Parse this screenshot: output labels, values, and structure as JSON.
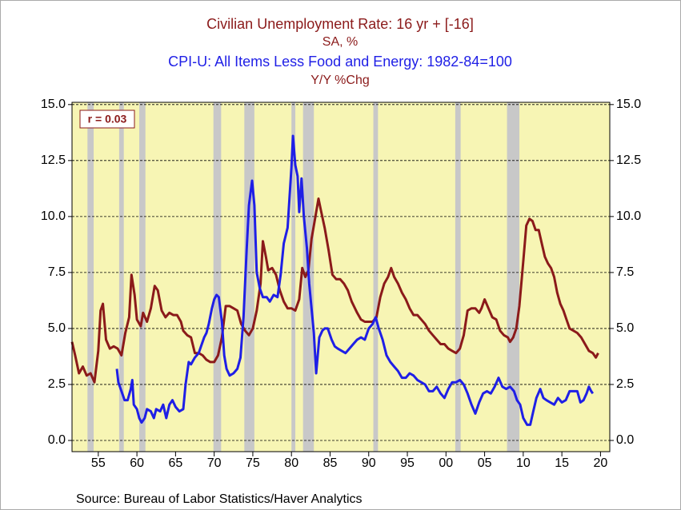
{
  "chart_data": {
    "type": "line",
    "titles": [
      {
        "text": "Civilian Unemployment Rate: 16 yr + [-16]",
        "color": "#8b1a1a"
      },
      {
        "text": "SA, %",
        "color": "#8b1a1a"
      },
      {
        "text": "CPI-U: All Items Less Food and Energy: 1982-84=100",
        "color": "#1f1fe6"
      },
      {
        "text": "Y/Y %Chg",
        "color": "#8b1a1a"
      }
    ],
    "annotation": "r = 0.03",
    "source": "Source:  Bureau of Labor Statistics/Haver Analytics",
    "xlim": [
      1951.6,
      2021.2
    ],
    "ylim": [
      -0.5,
      15.1
    ],
    "xticks": [
      {
        "value": 1955,
        "label": "55"
      },
      {
        "value": 1960,
        "label": "60"
      },
      {
        "value": 1965,
        "label": "65"
      },
      {
        "value": 1970,
        "label": "70"
      },
      {
        "value": 1975,
        "label": "75"
      },
      {
        "value": 1980,
        "label": "80"
      },
      {
        "value": 1985,
        "label": "85"
      },
      {
        "value": 1990,
        "label": "90"
      },
      {
        "value": 1995,
        "label": "95"
      },
      {
        "value": 2000,
        "label": "00"
      },
      {
        "value": 2005,
        "label": "05"
      },
      {
        "value": 2010,
        "label": "10"
      },
      {
        "value": 2015,
        "label": "15"
      },
      {
        "value": 2020,
        "label": "20"
      }
    ],
    "yticks": [
      {
        "value": 0,
        "label": "0.0"
      },
      {
        "value": 2.5,
        "label": "2.5"
      },
      {
        "value": 5,
        "label": "5.0"
      },
      {
        "value": 7.5,
        "label": "7.5"
      },
      {
        "value": 10,
        "label": "10.0"
      },
      {
        "value": 12.5,
        "label": "12.5"
      },
      {
        "value": 15,
        "label": "15.0"
      }
    ],
    "grid": true,
    "background": "#f7f5b4",
    "recession_color": "#c8c8c8",
    "recessions": [
      [
        1953.6,
        1954.4
      ],
      [
        1957.7,
        1958.3
      ],
      [
        1960.3,
        1961.1
      ],
      [
        1969.9,
        1970.9
      ],
      [
        1973.9,
        1975.2
      ],
      [
        1980.0,
        1980.5
      ],
      [
        1981.5,
        1982.9
      ],
      [
        1990.6,
        1991.2
      ],
      [
        2001.2,
        2001.9
      ],
      [
        2007.9,
        2009.5
      ]
    ],
    "series": [
      {
        "name": "Civilian Unemployment Rate: 16 yr + [-16]",
        "color": "#8b1a1a",
        "x": [
          1951.6,
          1952,
          1952.5,
          1953,
          1953.5,
          1954,
          1954.5,
          1955,
          1955.3,
          1955.6,
          1956,
          1956.5,
          1957,
          1957.5,
          1958,
          1958.5,
          1959,
          1959.3,
          1959.7,
          1960,
          1960.5,
          1960.8,
          1961.3,
          1961.8,
          1962.3,
          1962.7,
          1963.2,
          1963.7,
          1964.2,
          1964.7,
          1965.2,
          1965.7,
          1966,
          1966.5,
          1967,
          1967.5,
          1968,
          1968.5,
          1969,
          1969.5,
          1970,
          1970.5,
          1971,
          1971.5,
          1972,
          1972.5,
          1973,
          1973.5,
          1974,
          1974.5,
          1975,
          1975.5,
          1976,
          1976.3,
          1976.7,
          1977,
          1977.5,
          1978,
          1978.5,
          1979,
          1979.5,
          1980,
          1980.5,
          1981,
          1981.4,
          1981.8,
          1982.2,
          1982.6,
          1983,
          1983.5,
          1983.8,
          1984.3,
          1984.8,
          1985.3,
          1985.8,
          1986.3,
          1986.8,
          1987.3,
          1987.8,
          1988.5,
          1989,
          1989.5,
          1990,
          1990.5,
          1991,
          1991.5,
          1992,
          1992.5,
          1992.9,
          1993.3,
          1993.8,
          1994.3,
          1994.8,
          1995.3,
          1995.8,
          1996.3,
          1996.8,
          1997.3,
          1997.8,
          1998.3,
          1998.8,
          1999.3,
          1999.8,
          2000.3,
          2000.8,
          2001.3,
          2001.8,
          2002.3,
          2002.8,
          2003.3,
          2003.8,
          2004.3,
          2004.6,
          2005,
          2005.5,
          2006,
          2006.5,
          2007,
          2007.5,
          2008,
          2008.3,
          2008.7,
          2009.1,
          2009.5,
          2010,
          2010.4,
          2010.8,
          2011.2,
          2011.6,
          2012,
          2012.4,
          2012.8,
          2013.2,
          2013.6,
          2014,
          2014.4,
          2014.8,
          2015.2,
          2015.6,
          2016,
          2016.5,
          2017,
          2017.5,
          2018,
          2018.5,
          2019,
          2019.4,
          2019.7
        ],
        "values": [
          4.4,
          3.8,
          3.0,
          3.3,
          2.9,
          3.0,
          2.6,
          4.0,
          5.8,
          6.1,
          4.5,
          4.1,
          4.2,
          4.1,
          3.8,
          4.8,
          5.5,
          7.4,
          6.5,
          5.4,
          5.1,
          5.7,
          5.3,
          5.9,
          6.9,
          6.7,
          5.8,
          5.5,
          5.7,
          5.6,
          5.6,
          5.3,
          4.9,
          4.7,
          4.6,
          3.9,
          3.9,
          3.8,
          3.6,
          3.5,
          3.5,
          3.8,
          4.6,
          6.0,
          6.0,
          5.9,
          5.8,
          5.2,
          4.9,
          4.7,
          5.0,
          5.8,
          7.0,
          8.9,
          8.2,
          7.6,
          7.7,
          7.4,
          6.7,
          6.2,
          5.9,
          5.9,
          5.8,
          6.3,
          7.7,
          7.3,
          7.6,
          9.0,
          9.8,
          10.8,
          10.3,
          9.5,
          8.5,
          7.4,
          7.2,
          7.2,
          7.0,
          6.7,
          6.2,
          5.7,
          5.4,
          5.3,
          5.3,
          5.3,
          5.5,
          6.4,
          7.0,
          7.3,
          7.7,
          7.3,
          7.0,
          6.6,
          6.3,
          5.9,
          5.6,
          5.6,
          5.4,
          5.2,
          4.9,
          4.7,
          4.5,
          4.3,
          4.3,
          4.1,
          4.0,
          3.9,
          4.1,
          4.7,
          5.8,
          5.9,
          5.9,
          5.7,
          5.9,
          6.3,
          5.9,
          5.5,
          5.4,
          4.9,
          4.7,
          4.6,
          4.4,
          4.6,
          5.0,
          6.0,
          8.0,
          9.6,
          9.9,
          9.8,
          9.4,
          9.4,
          8.8,
          8.2,
          7.9,
          7.7,
          7.3,
          6.6,
          6.1,
          5.8,
          5.4,
          5.0,
          4.9,
          4.8,
          4.6,
          4.3,
          4.0,
          3.9,
          3.7,
          3.9
        ]
      },
      {
        "name": "CPI-U: All Items Less Food and Energy: 1982-84=100",
        "color": "#1f1fe6",
        "x": [
          1957.4,
          1957.6,
          1958,
          1958.4,
          1958.8,
          1959.2,
          1959.4,
          1959.6,
          1960,
          1960.3,
          1960.6,
          1961,
          1961.3,
          1961.8,
          1962.2,
          1962.5,
          1963,
          1963.4,
          1963.8,
          1964.2,
          1964.6,
          1965,
          1965.5,
          1966,
          1966.3,
          1966.7,
          1967,
          1967.5,
          1968,
          1968.3,
          1968.7,
          1969,
          1969.3,
          1969.7,
          1970,
          1970.3,
          1970.6,
          1971,
          1971.3,
          1971.6,
          1972,
          1972.5,
          1973,
          1973.4,
          1973.8,
          1974.2,
          1974.5,
          1974.9,
          1975.2,
          1975.5,
          1975.9,
          1976.3,
          1976.8,
          1977.2,
          1977.7,
          1978.2,
          1978.6,
          1979,
          1979.5,
          1980,
          1980.2,
          1980.5,
          1980.8,
          1981,
          1981.3,
          1981.6,
          1982,
          1982.3,
          1982.6,
          1982.9,
          1983.2,
          1983.6,
          1984,
          1984.3,
          1984.7,
          1985.2,
          1985.6,
          1986,
          1986.5,
          1987,
          1987.5,
          1988,
          1988.5,
          1989,
          1989.5,
          1990,
          1990.5,
          1990.9,
          1991.3,
          1991.8,
          1992.3,
          1992.8,
          1993.3,
          1993.8,
          1994.3,
          1994.8,
          1995.3,
          1995.8,
          1996.3,
          1996.8,
          1997.3,
          1997.8,
          1998.3,
          1998.8,
          1999.3,
          1999.8,
          2000.3,
          2000.8,
          2001.3,
          2001.8,
          2002.3,
          2002.8,
          2003.3,
          2003.8,
          2004.3,
          2004.8,
          2005.3,
          2005.8,
          2006.3,
          2006.8,
          2007.3,
          2007.8,
          2008.3,
          2008.8,
          2009.2,
          2009.6,
          2010,
          2010.5,
          2010.9,
          2011.3,
          2011.7,
          2012.2,
          2012.6,
          2013,
          2013.5,
          2014,
          2014.5,
          2015,
          2015.5,
          2016,
          2016.5,
          2017,
          2017.4,
          2017.8,
          2018.2,
          2018.5,
          2018.8,
          2019
        ],
        "values": [
          3.2,
          2.6,
          2.2,
          1.8,
          1.8,
          2.3,
          2.7,
          1.6,
          1.4,
          1.0,
          0.8,
          1.0,
          1.4,
          1.3,
          1.0,
          1.4,
          1.3,
          1.6,
          1.0,
          1.6,
          1.8,
          1.5,
          1.3,
          1.4,
          2.5,
          3.5,
          3.4,
          3.7,
          3.9,
          4.2,
          4.6,
          4.8,
          5.2,
          5.9,
          6.3,
          6.5,
          6.4,
          5.3,
          3.8,
          3.2,
          2.9,
          3.0,
          3.2,
          3.7,
          5.5,
          8.5,
          10.5,
          11.6,
          10.5,
          7.5,
          6.8,
          6.4,
          6.4,
          6.2,
          6.5,
          6.4,
          7.4,
          8.8,
          9.5,
          12.2,
          13.6,
          12.3,
          11.8,
          10.2,
          11.7,
          10.0,
          8.6,
          7.0,
          5.9,
          4.8,
          3.0,
          4.6,
          4.9,
          5.0,
          5.0,
          4.5,
          4.2,
          4.1,
          4.0,
          3.9,
          4.1,
          4.3,
          4.5,
          4.6,
          4.5,
          5.0,
          5.2,
          5.5,
          5.0,
          4.5,
          3.8,
          3.5,
          3.3,
          3.1,
          2.8,
          2.8,
          3.0,
          2.9,
          2.7,
          2.6,
          2.5,
          2.2,
          2.2,
          2.4,
          2.1,
          1.9,
          2.3,
          2.6,
          2.6,
          2.7,
          2.5,
          2.1,
          1.6,
          1.2,
          1.7,
          2.1,
          2.2,
          2.1,
          2.4,
          2.8,
          2.4,
          2.3,
          2.4,
          2.2,
          1.8,
          1.6,
          1.0,
          0.7,
          0.7,
          1.3,
          1.9,
          2.3,
          1.9,
          1.8,
          1.7,
          1.6,
          1.9,
          1.7,
          1.8,
          2.2,
          2.2,
          2.2,
          1.7,
          1.8,
          2.1,
          2.4,
          2.2,
          2.1
        ]
      }
    ]
  }
}
